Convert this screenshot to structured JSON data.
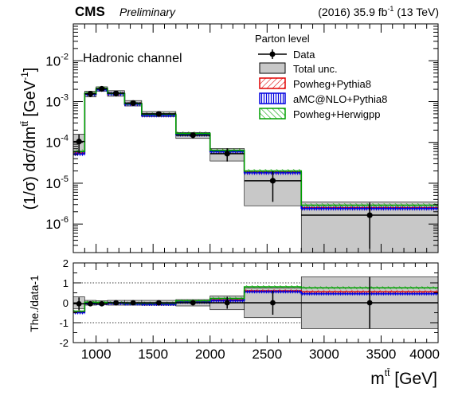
{
  "header": {
    "experiment": "CMS",
    "status": "Preliminary",
    "lumi_prefix": "(2016) 35.9 fb",
    "lumi_exp": "-1",
    "lumi_suffix": " (13 TeV)"
  },
  "chart_data": {
    "type": "histogram",
    "channel_label": "Hadronic channel",
    "legend_title": "Parton level",
    "legend_position": "top-right",
    "x_axis": {
      "label_main": "m",
      "label_sup": "tt̄",
      "label_unit": " [GeV]",
      "range": [
        800,
        4000
      ],
      "ticks": [
        "1000",
        "1500",
        "2000",
        "2500",
        "3000",
        "3500",
        "4000"
      ]
    },
    "top_panel": {
      "y_label": "(1/σ) dσ/dm",
      "y_label_sup": "tt̄",
      "y_label_unit": " [GeV",
      "y_label_unit_exp": "-1",
      "y_label_close": "]",
      "y_scale": "log",
      "y_range": [
        2e-07,
        0.08
      ],
      "y_ticks": [
        {
          "base": "10",
          "exp": "-6",
          "value": 1e-06
        },
        {
          "base": "10",
          "exp": "-5",
          "value": 1e-05
        },
        {
          "base": "10",
          "exp": "-4",
          "value": 0.0001
        },
        {
          "base": "10",
          "exp": "-3",
          "value": 0.001
        },
        {
          "base": "10",
          "exp": "-2",
          "value": 0.01
        }
      ]
    },
    "ratio_panel": {
      "y_label": "The./data-1",
      "y_range": [
        -2,
        2
      ],
      "y_ticks": [
        "-2",
        "-1",
        "0",
        "1",
        "2"
      ]
    },
    "bin_edges": [
      800,
      900,
      1000,
      1100,
      1250,
      1400,
      1700,
      2000,
      2300,
      2800,
      4000
    ],
    "series": [
      {
        "name": "Data",
        "values": [
          0.000105,
          0.00155,
          0.00205,
          0.0016,
          0.00092,
          0.0005,
          0.00015,
          5.3e-05,
          1.15e-05,
          1.65e-06
        ],
        "x_points": [
          850,
          950,
          1050,
          1175,
          1325,
          1550,
          1850,
          2150,
          2550,
          3400
        ],
        "err_low": [
          5e-05,
          0.00025,
          0.00025,
          0.0002,
          0.00012,
          6e-05,
          2.2e-05,
          1.9e-05,
          8e-06,
          1.4e-06
        ],
        "err_high": [
          5e-05,
          0.00025,
          0.00025,
          0.0002,
          0.00012,
          6e-05,
          2.2e-05,
          1.9e-05,
          8e-06,
          1.7e-06
        ],
        "ratio": [
          -0.05,
          -0.05,
          -0.05,
          0.0,
          0.0,
          0.0,
          0.0,
          0.0,
          0.0,
          0.0
        ],
        "ratio_err": [
          0.32,
          0.1,
          0.06,
          0.06,
          0.08,
          0.07,
          0.12,
          0.3,
          0.6,
          1.3
        ],
        "color": "#000000"
      },
      {
        "name": "Total unc.",
        "low": [
          5.8e-05,
          0.0013,
          0.0018,
          0.00135,
          0.00078,
          0.00043,
          0.000125,
          3.5e-05,
          2.8e-06,
          2e-07
        ],
        "high": [
          0.00016,
          0.0018,
          0.0023,
          0.00185,
          0.00106,
          0.00057,
          0.000175,
          7.1e-05,
          2e-05,
          3.5e-06
        ],
        "ratio_band": [
          0.3,
          0.12,
          0.1,
          0.12,
          0.12,
          0.12,
          0.16,
          0.35,
          0.75,
          1.3
        ],
        "color": "#c8c8c8"
      },
      {
        "name": "Powheg+Pythia8",
        "values": [
          5.5e-05,
          0.00155,
          0.002,
          0.00155,
          0.00088,
          0.00047,
          0.00016,
          6.1e-05,
          1.85e-05,
          2.5e-06
        ],
        "ratio": [
          -0.45,
          0.0,
          -0.04,
          -0.03,
          -0.04,
          -0.06,
          0.05,
          0.15,
          0.6,
          0.55
        ],
        "color": "#e00000"
      },
      {
        "name": "aMC@NLO+Pythia8",
        "values": [
          5.2e-05,
          0.0015,
          0.00195,
          0.00155,
          0.00086,
          0.00046,
          0.000155,
          5.9e-05,
          1.8e-05,
          2.4e-06
        ],
        "ratio": [
          -0.5,
          -0.03,
          -0.05,
          -0.03,
          -0.06,
          -0.08,
          0.03,
          0.1,
          0.55,
          0.45
        ],
        "color": "#0000e0"
      },
      {
        "name": "Powheg+Herwigpp",
        "values": [
          6e-05,
          0.0016,
          0.0021,
          0.0016,
          0.0009,
          0.00049,
          0.000165,
          6.4e-05,
          2e-05,
          2.9e-06
        ],
        "ratio": [
          -0.42,
          0.03,
          0.02,
          0.0,
          -0.02,
          -0.02,
          0.1,
          0.22,
          0.8,
          0.75
        ],
        "color": "#00a000"
      }
    ]
  }
}
